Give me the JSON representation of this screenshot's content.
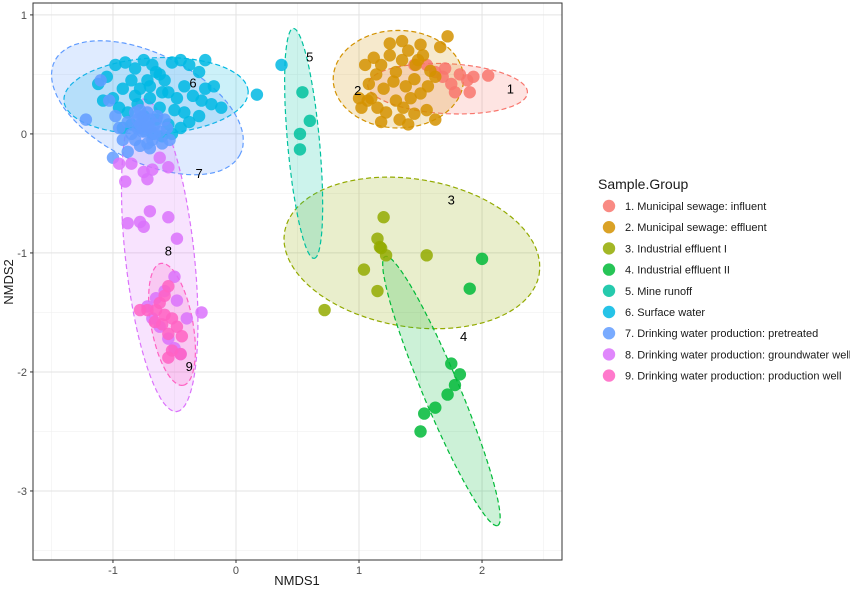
{
  "chart_data": {
    "type": "scatter",
    "xlabel": "NMDS1",
    "ylabel": "NMDS2",
    "xlim": [
      -1.65,
      2.65
    ],
    "ylim": [
      -3.58,
      1.1
    ],
    "x_ticks": [
      "-1",
      "0",
      "1",
      "2"
    ],
    "y_ticks": [
      "1",
      "0",
      "-1",
      "-2",
      "-3"
    ],
    "legend_title": "Sample.Group",
    "legend_position": "right",
    "grid": true,
    "series": [
      {
        "name": "1. Municipal sewage: influent",
        "color": "#F8766D",
        "label": "1",
        "ellipse": {
          "cx": 1.72,
          "cy": 0.38,
          "rx": 0.65,
          "ry": 0.21,
          "angle": -3
        },
        "points": [
          [
            1.55,
            0.58
          ],
          [
            1.62,
            0.52
          ],
          [
            1.68,
            0.48
          ],
          [
            1.75,
            0.42
          ],
          [
            1.82,
            0.5
          ],
          [
            1.88,
            0.45
          ],
          [
            1.93,
            0.48
          ],
          [
            2.05,
            0.49
          ],
          [
            1.78,
            0.35
          ],
          [
            1.9,
            0.35
          ],
          [
            1.45,
            0.58
          ],
          [
            1.7,
            0.55
          ]
        ]
      },
      {
        "name": "2. Municipal sewage: effluent",
        "color": "#D39200",
        "label": "2",
        "ellipse": {
          "cx": 1.32,
          "cy": 0.46,
          "rx": 0.53,
          "ry": 0.41,
          "angle": 0
        },
        "points": [
          [
            1.12,
            0.64
          ],
          [
            1.18,
            0.58
          ],
          [
            1.25,
            0.66
          ],
          [
            1.3,
            0.52
          ],
          [
            1.35,
            0.62
          ],
          [
            1.4,
            0.7
          ],
          [
            1.46,
            0.58
          ],
          [
            1.52,
            0.66
          ],
          [
            1.58,
            0.53
          ],
          [
            1.45,
            0.46
          ],
          [
            1.38,
            0.4
          ],
          [
            1.28,
            0.44
          ],
          [
            1.2,
            0.38
          ],
          [
            1.14,
            0.5
          ],
          [
            1.08,
            0.42
          ],
          [
            1.05,
            0.58
          ],
          [
            1.1,
            0.3
          ],
          [
            1.15,
            0.22
          ],
          [
            1.22,
            0.18
          ],
          [
            1.3,
            0.28
          ],
          [
            1.36,
            0.22
          ],
          [
            1.42,
            0.3
          ],
          [
            1.5,
            0.34
          ],
          [
            1.56,
            0.4
          ],
          [
            1.62,
            0.48
          ],
          [
            1.66,
            0.73
          ],
          [
            1.72,
            0.82
          ],
          [
            1.5,
            0.75
          ],
          [
            1.35,
            0.78
          ],
          [
            1.25,
            0.76
          ],
          [
            1.02,
            0.22
          ],
          [
            1.07,
            0.28
          ],
          [
            1.18,
            0.1
          ],
          [
            1.33,
            0.12
          ],
          [
            1.62,
            0.12
          ],
          [
            1.55,
            0.2
          ],
          [
            1.45,
            0.17
          ],
          [
            1.4,
            0.08
          ],
          [
            1.0,
            0.3
          ],
          [
            1.48,
            0.62
          ]
        ]
      },
      {
        "name": "3. Industrial effluent I",
        "color": "#93AA00",
        "label": "3",
        "ellipse": {
          "cx": 1.43,
          "cy": -1.0,
          "rx": 1.05,
          "ry": 0.62,
          "angle": -10
        },
        "points": [
          [
            1.2,
            -0.7
          ],
          [
            1.15,
            -0.88
          ],
          [
            1.17,
            -0.95
          ],
          [
            1.22,
            -1.02
          ],
          [
            1.04,
            -1.14
          ],
          [
            1.55,
            -1.02
          ],
          [
            1.15,
            -1.32
          ],
          [
            0.72,
            -1.48
          ],
          [
            1.18,
            -0.96
          ]
        ]
      },
      {
        "name": "4. Industrial effluent II",
        "color": "#00BA38",
        "label": "4",
        "ellipse": {
          "cx": 1.67,
          "cy": -2.16,
          "rx": 1.22,
          "ry": 0.15,
          "angle": -68
        },
        "points": [
          [
            2.0,
            -1.05
          ],
          [
            1.9,
            -1.3
          ],
          [
            1.75,
            -1.93
          ],
          [
            1.78,
            -2.11
          ],
          [
            1.72,
            -2.19
          ],
          [
            1.62,
            -2.3
          ],
          [
            1.53,
            -2.35
          ],
          [
            1.5,
            -2.5
          ],
          [
            1.82,
            -2.02
          ]
        ]
      },
      {
        "name": "5. Mine runoff",
        "color": "#00C19F",
        "label": "5",
        "ellipse": {
          "cx": 0.55,
          "cy": -0.08,
          "rx": 0.97,
          "ry": 0.13,
          "angle": -85
        },
        "points": [
          [
            0.54,
            0.35
          ],
          [
            0.6,
            0.11
          ],
          [
            0.52,
            0.0
          ],
          [
            0.52,
            -0.13
          ]
        ]
      },
      {
        "name": "6. Surface water",
        "color": "#00B9E3",
        "label": "6",
        "ellipse": {
          "cx": -0.65,
          "cy": 0.32,
          "rx": 0.75,
          "ry": 0.32,
          "angle": 3
        },
        "points": [
          [
            -0.98,
            0.58
          ],
          [
            -0.9,
            0.6
          ],
          [
            -0.82,
            0.55
          ],
          [
            -0.75,
            0.62
          ],
          [
            -0.68,
            0.58
          ],
          [
            -0.62,
            0.5
          ],
          [
            -0.52,
            0.6
          ],
          [
            -0.45,
            0.62
          ],
          [
            -0.38,
            0.58
          ],
          [
            -0.3,
            0.52
          ],
          [
            -0.25,
            0.38
          ],
          [
            -0.18,
            0.4
          ],
          [
            -0.12,
            0.22
          ],
          [
            -0.2,
            0.25
          ],
          [
            -0.28,
            0.28
          ],
          [
            -0.35,
            0.32
          ],
          [
            -0.42,
            0.4
          ],
          [
            -0.48,
            0.3
          ],
          [
            -0.55,
            0.35
          ],
          [
            -0.62,
            0.22
          ],
          [
            -0.7,
            0.3
          ],
          [
            -0.78,
            0.38
          ],
          [
            -0.85,
            0.45
          ],
          [
            -0.92,
            0.38
          ],
          [
            -1.0,
            0.3
          ],
          [
            -1.08,
            0.28
          ],
          [
            -1.12,
            0.42
          ],
          [
            -1.05,
            0.48
          ],
          [
            -0.95,
            0.22
          ],
          [
            -0.88,
            0.18
          ],
          [
            -0.8,
            0.25
          ],
          [
            -0.72,
            0.45
          ],
          [
            -0.65,
            0.52
          ],
          [
            -0.58,
            0.45
          ],
          [
            -0.5,
            0.2
          ],
          [
            -0.42,
            0.18
          ],
          [
            -0.38,
            0.1
          ],
          [
            -0.45,
            0.05
          ],
          [
            -0.55,
            0.08
          ],
          [
            -0.65,
            0.12
          ],
          [
            -0.75,
            0.15
          ],
          [
            -0.85,
            0.08
          ],
          [
            -0.92,
            0.05
          ],
          [
            -0.78,
            0.05
          ],
          [
            -0.68,
            0.0
          ],
          [
            -0.6,
            -0.02
          ],
          [
            -0.52,
            0.0
          ],
          [
            -0.7,
            0.4
          ],
          [
            -0.6,
            0.35
          ],
          [
            -0.82,
            0.32
          ],
          [
            0.17,
            0.33
          ],
          [
            0.37,
            0.58
          ],
          [
            -0.3,
            0.15
          ],
          [
            -0.25,
            0.62
          ]
        ]
      },
      {
        "name": "7. Drinking water production: pretreated",
        "color": "#619CFF",
        "label": "7",
        "ellipse": {
          "cx": -0.72,
          "cy": 0.22,
          "rx": 0.85,
          "ry": 0.45,
          "angle": -28
        },
        "points": [
          [
            -1.22,
            0.12
          ],
          [
            -1.1,
            0.45
          ],
          [
            -1.03,
            0.28
          ],
          [
            -0.98,
            0.15
          ],
          [
            -0.95,
            0.05
          ],
          [
            -0.92,
            -0.05
          ],
          [
            -0.88,
            0.1
          ],
          [
            -0.85,
            0.0
          ],
          [
            -0.82,
            0.18
          ],
          [
            -0.8,
            0.12
          ],
          [
            -0.78,
            0.08
          ],
          [
            -0.76,
            0.02
          ],
          [
            -0.74,
            0.1
          ],
          [
            -0.72,
            0.18
          ],
          [
            -0.7,
            0.05
          ],
          [
            -0.68,
            -0.05
          ],
          [
            -0.66,
            0.08
          ],
          [
            -0.64,
            0.15
          ],
          [
            -0.62,
            0.02
          ],
          [
            -0.6,
            -0.08
          ],
          [
            -0.58,
            0.12
          ],
          [
            -0.56,
            0.05
          ],
          [
            -0.54,
            -0.05
          ],
          [
            -0.82,
            -0.05
          ],
          [
            -0.72,
            -0.08
          ],
          [
            -0.76,
            0.14
          ],
          [
            -0.7,
            0.12
          ],
          [
            -0.78,
            0.2
          ],
          [
            -0.74,
            0.02
          ],
          [
            -0.66,
            0.0
          ],
          [
            -1.0,
            -0.2
          ],
          [
            -0.88,
            -0.15
          ],
          [
            -0.78,
            -0.1
          ],
          [
            -0.7,
            -0.12
          ],
          [
            -0.8,
            0.05
          ],
          [
            -0.72,
            0.06
          ]
        ]
      },
      {
        "name": "8. Drinking water production: groundwater well",
        "color": "#DB72FB",
        "label": "8",
        "ellipse": {
          "cx": -0.62,
          "cy": -1.02,
          "rx": 1.32,
          "ry": 0.28,
          "angle": -84
        },
        "points": [
          [
            -0.95,
            -0.25
          ],
          [
            -0.85,
            -0.25
          ],
          [
            -0.75,
            -0.32
          ],
          [
            -0.72,
            -0.38
          ],
          [
            -0.68,
            -0.3
          ],
          [
            -0.62,
            -0.2
          ],
          [
            -0.55,
            -0.28
          ],
          [
            -0.9,
            -0.4
          ],
          [
            -0.88,
            -0.75
          ],
          [
            -0.78,
            -0.74
          ],
          [
            -0.75,
            -0.78
          ],
          [
            -0.7,
            -0.65
          ],
          [
            -0.55,
            -0.7
          ],
          [
            -0.48,
            -0.88
          ],
          [
            -0.5,
            -1.2
          ],
          [
            -0.58,
            -1.32
          ],
          [
            -0.65,
            -1.38
          ],
          [
            -0.72,
            -1.45
          ],
          [
            -0.48,
            -1.4
          ],
          [
            -0.4,
            -1.55
          ],
          [
            -0.28,
            -1.5
          ],
          [
            -0.55,
            -1.72
          ],
          [
            -0.62,
            -1.62
          ],
          [
            -0.5,
            -1.8
          ],
          [
            -0.45,
            -1.85
          ],
          [
            -0.68,
            -1.55
          ]
        ]
      },
      {
        "name": "9. Drinking water production: production well",
        "color": "#FF61C3",
        "label": "9",
        "ellipse": {
          "cx": -0.52,
          "cy": -1.6,
          "rx": 0.52,
          "ry": 0.17,
          "angle": -80
        },
        "points": [
          [
            -0.55,
            -1.28
          ],
          [
            -0.62,
            -1.42
          ],
          [
            -0.58,
            -1.52
          ],
          [
            -0.65,
            -1.48
          ],
          [
            -0.72,
            -1.48
          ],
          [
            -0.52,
            -1.55
          ],
          [
            -0.48,
            -1.62
          ],
          [
            -0.55,
            -1.68
          ],
          [
            -0.6,
            -1.6
          ],
          [
            -0.44,
            -1.7
          ],
          [
            -0.52,
            -1.82
          ],
          [
            -0.55,
            -1.88
          ],
          [
            -0.45,
            -1.85
          ],
          [
            -0.78,
            -1.48
          ],
          [
            -0.66,
            -1.58
          ],
          [
            -0.58,
            -1.36
          ]
        ]
      }
    ]
  }
}
